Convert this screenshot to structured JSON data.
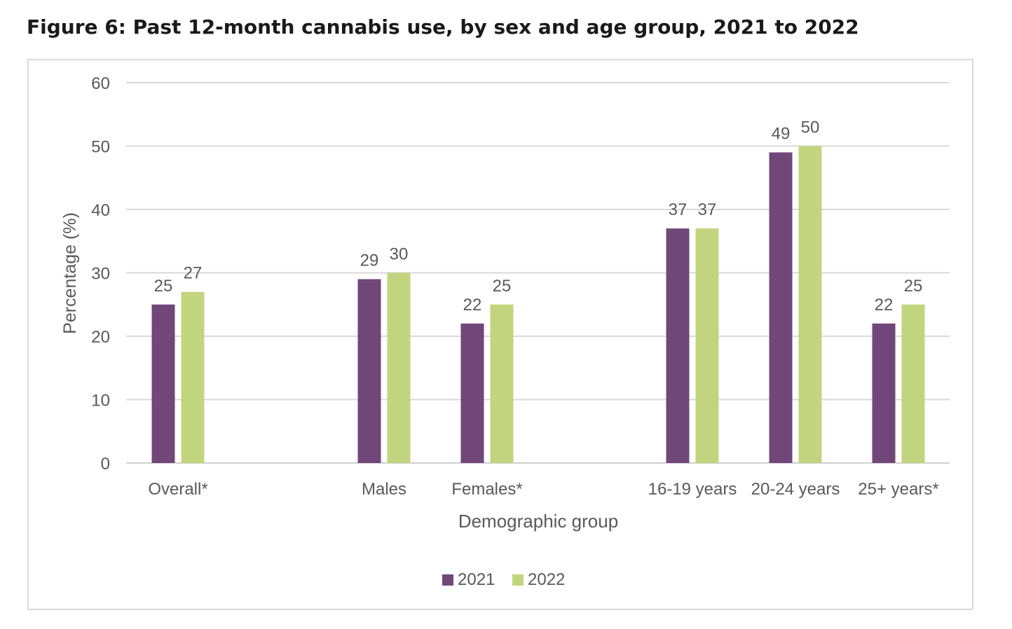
{
  "figure_title": "Figure 6: Past 12-month cannabis use, by sex and age group, 2021 to 2022",
  "chart_data": {
    "type": "bar",
    "categories": [
      "Overall*",
      "Males",
      "Females*",
      "16-19 years",
      "20-24 years",
      "25+ years*"
    ],
    "series": [
      {
        "name": "2021",
        "values": [
          25,
          29,
          22,
          37,
          49,
          22
        ],
        "color": "#71477a"
      },
      {
        "name": "2022",
        "values": [
          27,
          30,
          25,
          37,
          50,
          25
        ],
        "color": "#c2d57e"
      }
    ],
    "xlabel": "Demographic group",
    "ylabel": "Percentage (%)",
    "ylim": [
      0,
      60
    ],
    "yticks": [
      0,
      10,
      20,
      30,
      40,
      50,
      60
    ],
    "grid": true,
    "legend_position": "bottom"
  }
}
